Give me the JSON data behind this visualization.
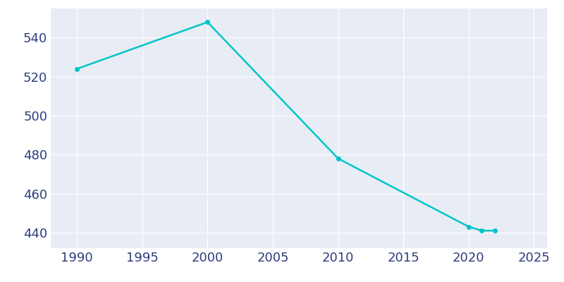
{
  "years": [
    1990,
    2000,
    2010,
    2020,
    2021,
    2022
  ],
  "population": [
    524,
    548,
    478,
    443,
    441,
    441
  ],
  "line_color": "#00C5C8",
  "marker_color": "#00C5C8",
  "background_color": "#E8EDF5",
  "axes_facecolor": "#E8EDF5",
  "figure_facecolor": "#ffffff",
  "grid_color": "#ffffff",
  "tick_color": "#2e3d7c",
  "xlim": [
    1988,
    2026
  ],
  "ylim": [
    432,
    555
  ],
  "xticks": [
    1990,
    1995,
    2000,
    2005,
    2010,
    2015,
    2020,
    2025
  ],
  "yticks": [
    440,
    460,
    480,
    500,
    520,
    540
  ],
  "marker_size": 4,
  "line_width": 1.8,
  "tick_labelsize": 13
}
